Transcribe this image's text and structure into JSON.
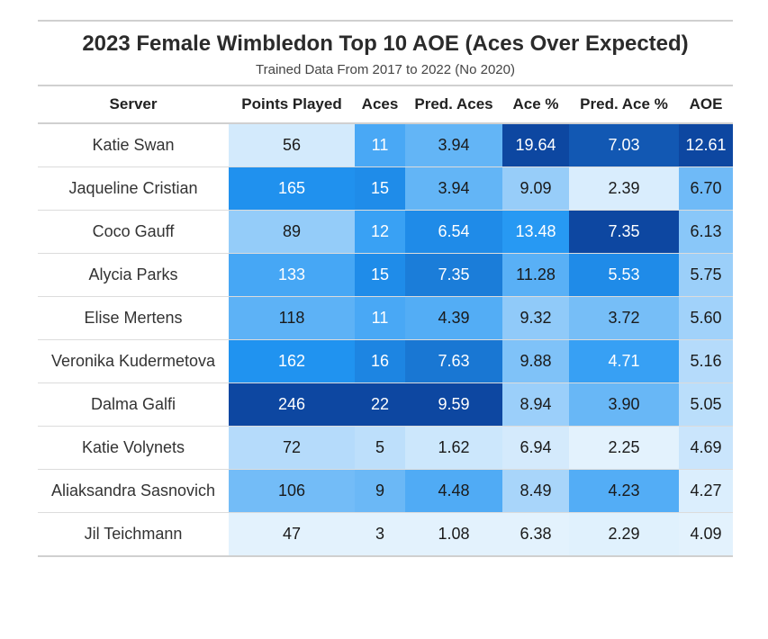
{
  "chart_data": {
    "type": "table",
    "title": "2023 Female Wimbledon Top 10 AOE (Aces Over Expected)",
    "subtitle": "Trained Data From 2017 to 2022 (No 2020)",
    "columns": [
      "Server",
      "Points Played",
      "Aces",
      "Pred. Aces",
      "Ace %",
      "Pred. Ace %",
      "AOE"
    ],
    "rows": [
      [
        "Katie Swan",
        "56",
        "11",
        "3.94",
        "19.64",
        "7.03",
        "12.61"
      ],
      [
        "Jaqueline Cristian",
        "165",
        "15",
        "3.94",
        "9.09",
        "2.39",
        "6.70"
      ],
      [
        "Coco Gauff",
        "89",
        "12",
        "6.54",
        "13.48",
        "7.35",
        "6.13"
      ],
      [
        "Alycia Parks",
        "133",
        "15",
        "7.35",
        "11.28",
        "5.53",
        "5.75"
      ],
      [
        "Elise Mertens",
        "118",
        "11",
        "4.39",
        "9.32",
        "3.72",
        "5.60"
      ],
      [
        "Veronika Kudermetova",
        "162",
        "16",
        "7.63",
        "9.88",
        "4.71",
        "5.16"
      ],
      [
        "Dalma Galfi",
        "246",
        "22",
        "9.59",
        "8.94",
        "3.90",
        "5.05"
      ],
      [
        "Katie Volynets",
        "72",
        "5",
        "1.62",
        "6.94",
        "2.25",
        "4.69"
      ],
      [
        "Aliaksandra Sasnovich",
        "106",
        "9",
        "4.48",
        "8.49",
        "4.23",
        "4.27"
      ],
      [
        "Jil Teichmann",
        "47",
        "3",
        "1.08",
        "6.38",
        "2.29",
        "4.09"
      ]
    ],
    "color_scale": [
      "#e3f2fd",
      "#bbdefb",
      "#90caf9",
      "#64b5f6",
      "#42a5f5",
      "#2196f3",
      "#1e88e5",
      "#1976d2",
      "#1565c0",
      "#0d47a1"
    ]
  }
}
